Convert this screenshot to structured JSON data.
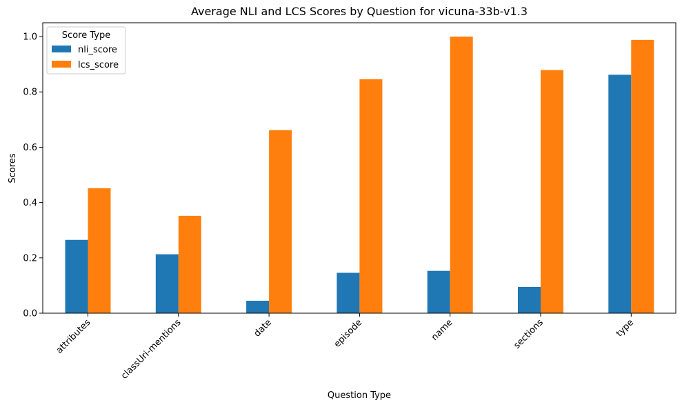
{
  "chart_data": {
    "type": "bar",
    "title": "Average NLI and LCS Scores by Question for vicuna-33b-v1.3",
    "xlabel": "Question Type",
    "ylabel": "Scores",
    "categories": [
      "attributes",
      "classUri-mentions",
      "date",
      "episode",
      "name",
      "sections",
      "type"
    ],
    "series": [
      {
        "name": "nli_score",
        "color": "#1f77b4",
        "values": [
          0.265,
          0.213,
          0.045,
          0.146,
          0.153,
          0.095,
          0.862
        ]
      },
      {
        "name": "lcs_score",
        "color": "#ff7f0e",
        "values": [
          0.452,
          0.352,
          0.662,
          0.846,
          1.0,
          0.879,
          0.988
        ]
      }
    ],
    "ylim": [
      0,
      1.05
    ],
    "yticks": [
      "0.0",
      "0.2",
      "0.4",
      "0.6",
      "0.8",
      "1.0"
    ],
    "xtick_rotation": "45 degrees",
    "grid": false,
    "legend": {
      "title": "Score Type",
      "placement": "top-left"
    }
  }
}
